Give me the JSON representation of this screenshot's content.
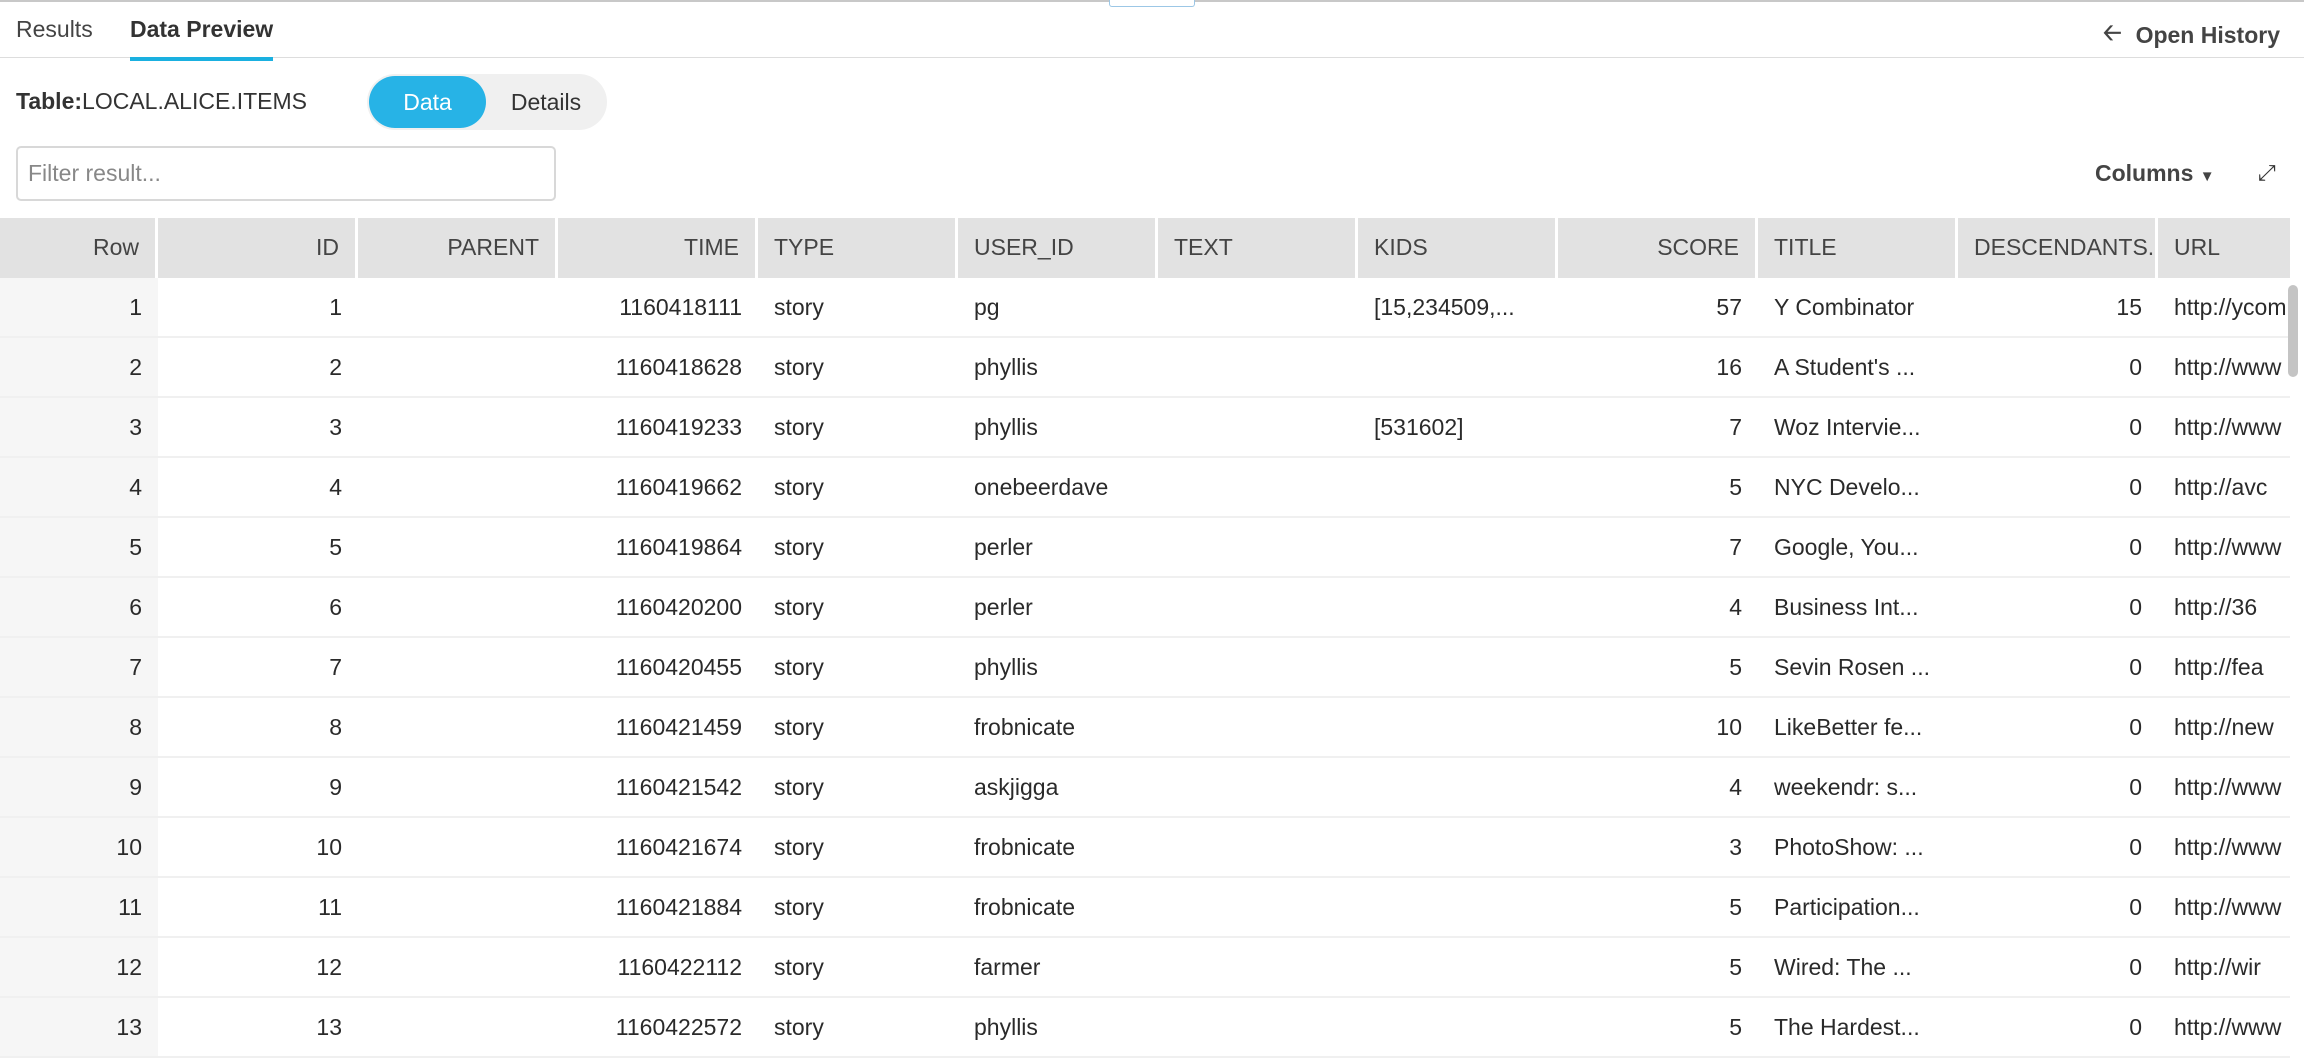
{
  "tabs": [
    {
      "label": "Results",
      "active": false
    },
    {
      "label": "Data Preview",
      "active": true
    }
  ],
  "history": {
    "label": "Open History",
    "icon": "arrow-left-icon"
  },
  "table_label": {
    "prefix": "Table:",
    "name": "LOCAL.ALICE.ITEMS"
  },
  "view_toggle": {
    "data": "Data",
    "details": "Details",
    "selected": "Data"
  },
  "filter": {
    "placeholder": "Filter result...",
    "value": ""
  },
  "columns_button": "Columns",
  "accent_color": "#27b3e6",
  "grid": {
    "headers": [
      "Row",
      "ID",
      "PARENT",
      "TIME",
      "TYPE",
      "USER_ID",
      "TEXT",
      "KIDS",
      "SCORE",
      "TITLE",
      "DESCENDANTS...",
      "URL"
    ],
    "rows": [
      [
        "1",
        "1",
        "",
        "1160418111",
        "story",
        "pg",
        "",
        "[15,234509,...",
        "57",
        "Y Combinator",
        "15",
        "http://ycombinator.com"
      ],
      [
        "2",
        "2",
        "",
        "1160418628",
        "story",
        "phyllis",
        "",
        "",
        "16",
        "A Student's ...",
        "0",
        "http://www"
      ],
      [
        "3",
        "3",
        "",
        "1160419233",
        "story",
        "phyllis",
        "",
        "[531602]",
        "7",
        "Woz Intervie...",
        "0",
        "http://www"
      ],
      [
        "4",
        "4",
        "",
        "1160419662",
        "story",
        "onebeerdave",
        "",
        "",
        "5",
        "NYC Develo...",
        "0",
        "http://avc"
      ],
      [
        "5",
        "5",
        "",
        "1160419864",
        "story",
        "perler",
        "",
        "",
        "7",
        "Google, You...",
        "0",
        "http://www"
      ],
      [
        "6",
        "6",
        "",
        "1160420200",
        "story",
        "perler",
        "",
        "",
        "4",
        "Business Int...",
        "0",
        "http://36"
      ],
      [
        "7",
        "7",
        "",
        "1160420455",
        "story",
        "phyllis",
        "",
        "",
        "5",
        "Sevin Rosen ...",
        "0",
        "http://fea"
      ],
      [
        "8",
        "8",
        "",
        "1160421459",
        "story",
        "frobnicate",
        "",
        "",
        "10",
        "LikeBetter fe...",
        "0",
        "http://new"
      ],
      [
        "9",
        "9",
        "",
        "1160421542",
        "story",
        "askjigga",
        "",
        "",
        "4",
        "weekendr: s...",
        "0",
        "http://www"
      ],
      [
        "10",
        "10",
        "",
        "1160421674",
        "story",
        "frobnicate",
        "",
        "",
        "3",
        "PhotoShow: ...",
        "0",
        "http://www"
      ],
      [
        "11",
        "11",
        "",
        "1160421884",
        "story",
        "frobnicate",
        "",
        "",
        "5",
        "Participation...",
        "0",
        "http://www"
      ],
      [
        "12",
        "12",
        "",
        "1160422112",
        "story",
        "farmer",
        "",
        "",
        "5",
        "Wired: The ...",
        "0",
        "http://wir"
      ],
      [
        "13",
        "13",
        "",
        "1160422572",
        "story",
        "phyllis",
        "",
        "",
        "5",
        "The Hardest...",
        "0",
        "http://www"
      ]
    ]
  }
}
